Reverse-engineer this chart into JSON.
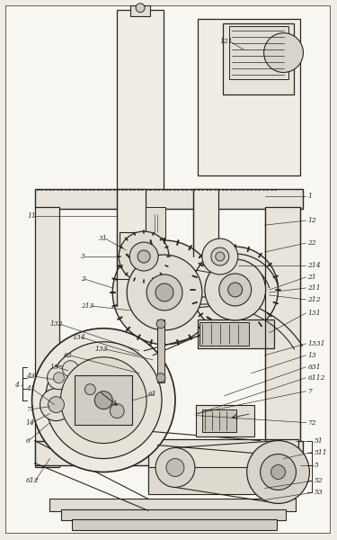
{
  "bg_color": "#f0ede6",
  "line_color": "#2a2520",
  "figsize": [
    3.75,
    6.0
  ],
  "dpi": 100,
  "lw_main": 1.0,
  "lw_thin": 0.6,
  "lw_med": 0.8,
  "fs_label": 5.5
}
